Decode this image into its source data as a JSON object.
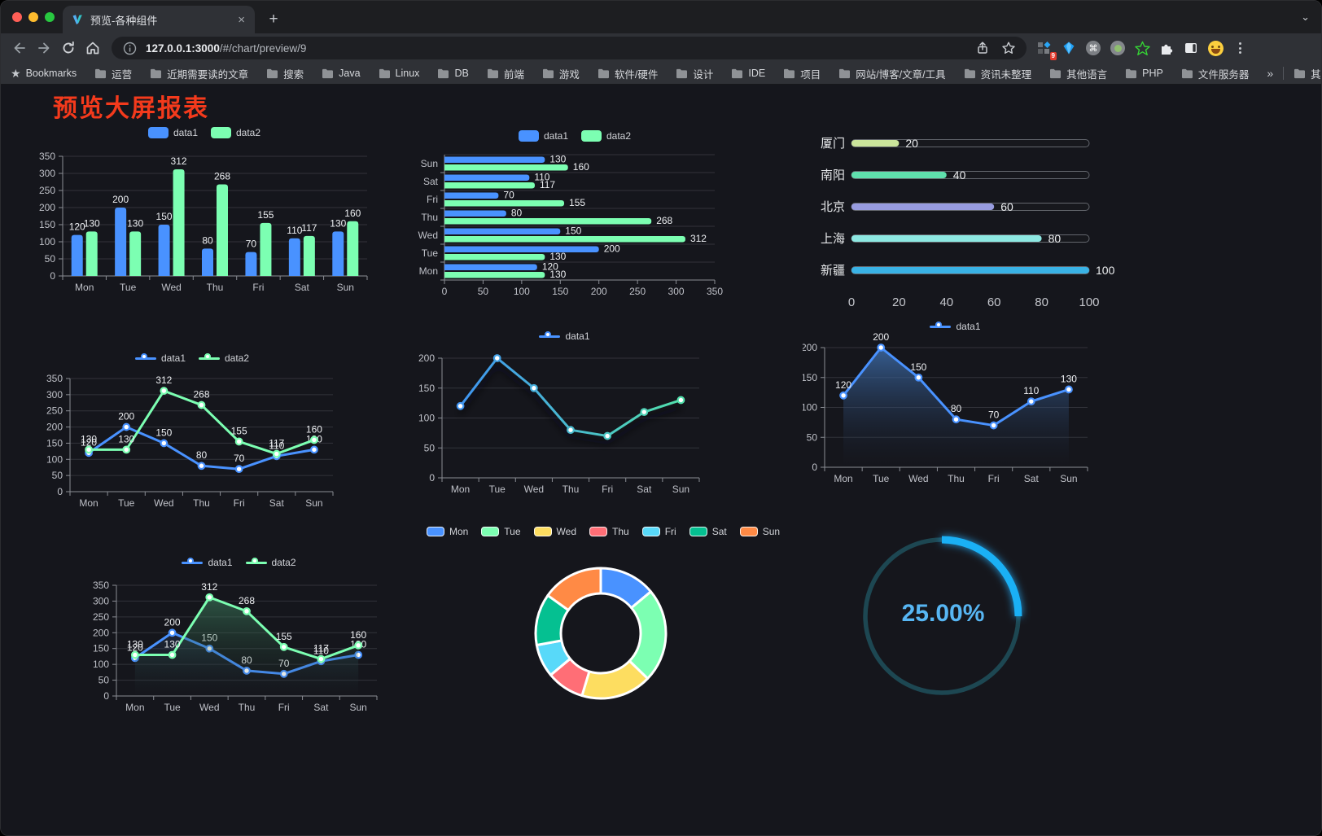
{
  "browser": {
    "window_controls": {
      "close": "#ff5f57",
      "minimize": "#febc2e",
      "zoom": "#28c840"
    },
    "tab_title": "预览-各种组件",
    "close_tab_label": "×",
    "new_tab_label": "+",
    "tab_chevron": "⌄",
    "url_host": "127.0.0.1:3000",
    "url_path": "/#/chart/preview/9",
    "extension_badge": "9",
    "menu_dots": "⋮",
    "bookmarks": {
      "label": "Bookmarks",
      "folders": [
        "运营",
        "近期需要读的文章",
        "搜索",
        "Java",
        "Linux",
        "DB",
        "前端",
        "游戏",
        "软件/硬件",
        "设计",
        "IDE",
        "项目",
        "网站/博客/文章/工具",
        "资讯未整理",
        "其他语言",
        "PHP",
        "文件服务器"
      ],
      "overflow": "»",
      "other_bookmarks": "其他书签"
    }
  },
  "page": {
    "title": "预览大屏报表",
    "title_color": "#f43a1c"
  },
  "chart_data": [
    {
      "id": "bar-vertical",
      "type": "bar",
      "orientation": "vertical",
      "categories": [
        "Mon",
        "Tue",
        "Wed",
        "Thu",
        "Fri",
        "Sat",
        "Sun"
      ],
      "series": [
        {
          "name": "data1",
          "color": "#4992ff",
          "values": [
            120,
            200,
            150,
            80,
            70,
            110,
            130
          ]
        },
        {
          "name": "data2",
          "color": "#7cffb2",
          "values": [
            130,
            130,
            312,
            268,
            155,
            117,
            160
          ]
        }
      ],
      "ylim": [
        0,
        350
      ],
      "yticks": [
        0,
        50,
        100,
        150,
        200,
        250,
        300,
        350
      ],
      "legend_position": "top",
      "value_labels": true,
      "grid": true
    },
    {
      "id": "bar-horizontal",
      "type": "bar",
      "orientation": "horizontal",
      "categories": [
        "Mon",
        "Tue",
        "Wed",
        "Thu",
        "Fri",
        "Sat",
        "Sun"
      ],
      "categories_bottom_to_top": true,
      "series": [
        {
          "name": "data1",
          "color": "#4992ff",
          "values": [
            120,
            200,
            150,
            80,
            70,
            110,
            130
          ]
        },
        {
          "name": "data2",
          "color": "#7cffb2",
          "values": [
            130,
            130,
            312,
            268,
            155,
            117,
            160
          ]
        }
      ],
      "xlim": [
        0,
        350
      ],
      "xticks": [
        0,
        50,
        100,
        150,
        200,
        250,
        300,
        350
      ],
      "legend_position": "top",
      "value_labels": true,
      "grid": true
    },
    {
      "id": "progress",
      "type": "bar",
      "orientation": "horizontal-progress",
      "rows": [
        {
          "label": "厦门",
          "value": 20,
          "color": "#cbe59b"
        },
        {
          "label": "南阳",
          "value": 40,
          "color": "#5fe0ad"
        },
        {
          "label": "北京",
          "value": 60,
          "color": "#989ce0"
        },
        {
          "label": "上海",
          "value": 80,
          "color": "#8de8e2"
        },
        {
          "label": "新疆",
          "value": 100,
          "color": "#39b2e5"
        }
      ],
      "xlim": [
        0,
        100
      ],
      "xticks": [
        0,
        20,
        40,
        60,
        80,
        100
      ],
      "value_labels": true
    },
    {
      "id": "line-two",
      "type": "line",
      "categories": [
        "Mon",
        "Tue",
        "Wed",
        "Thu",
        "Fri",
        "Sat",
        "Sun"
      ],
      "series": [
        {
          "name": "data1",
          "color": "#4992ff",
          "values": [
            120,
            200,
            150,
            80,
            70,
            110,
            130
          ]
        },
        {
          "name": "data2",
          "color": "#7cffb2",
          "values": [
            130,
            130,
            312,
            268,
            155,
            117,
            160
          ]
        }
      ],
      "ylim": [
        0,
        350
      ],
      "yticks": [
        0,
        50,
        100,
        150,
        200,
        250,
        300,
        350
      ],
      "legend_position": "top",
      "value_labels": true,
      "grid": true
    },
    {
      "id": "line-gradient",
      "type": "line",
      "categories": [
        "Mon",
        "Tue",
        "Wed",
        "Thu",
        "Fri",
        "Sat",
        "Sun"
      ],
      "series": [
        {
          "name": "data1",
          "gradient": [
            "#3e8ef7",
            "#53e6a6"
          ],
          "color": "#4992ff",
          "values": [
            120,
            200,
            150,
            80,
            70,
            110,
            130
          ]
        }
      ],
      "ylim": [
        0,
        200
      ],
      "yticks": [
        0,
        50,
        100,
        150,
        200
      ],
      "legend_position": "top",
      "value_labels": false,
      "line_shadow": true,
      "grid": true
    },
    {
      "id": "line-area",
      "type": "area",
      "categories": [
        "Mon",
        "Tue",
        "Wed",
        "Thu",
        "Fri",
        "Sat",
        "Sun"
      ],
      "series": [
        {
          "name": "data1",
          "color": "#4992ff",
          "values": [
            120,
            200,
            150,
            80,
            70,
            110,
            130
          ],
          "area_gradient": [
            "rgba(64,115,180,0.78)",
            "rgba(30,40,60,0)"
          ]
        }
      ],
      "ylim": [
        0,
        200
      ],
      "yticks": [
        0,
        50,
        100,
        150,
        200
      ],
      "legend_position": "top",
      "value_labels": true,
      "grid": true
    },
    {
      "id": "line-area-two",
      "type": "area",
      "categories": [
        "Mon",
        "Tue",
        "Wed",
        "Thu",
        "Fri",
        "Sat",
        "Sun"
      ],
      "series": [
        {
          "name": "data1",
          "color": "#4992ff",
          "values": [
            120,
            200,
            150,
            80,
            70,
            110,
            130
          ],
          "area_gradient": [
            "rgba(60,100,160,0.55)",
            "rgba(30,40,60,0)"
          ]
        },
        {
          "name": "data2",
          "color": "#7cffb2",
          "values": [
            130,
            130,
            312,
            268,
            155,
            117,
            160
          ],
          "area_gradient": [
            "rgba(70,150,110,0.6)",
            "rgba(30,50,40,0)"
          ]
        }
      ],
      "ylim": [
        0,
        350
      ],
      "yticks": [
        0,
        50,
        100,
        150,
        200,
        250,
        300,
        350
      ],
      "legend_position": "top",
      "value_labels": true,
      "grid": true
    },
    {
      "id": "donut",
      "type": "pie",
      "labels": [
        "Mon",
        "Tue",
        "Wed",
        "Thu",
        "Fri",
        "Sat",
        "Sun"
      ],
      "values": [
        120,
        200,
        150,
        80,
        70,
        110,
        130
      ],
      "colors": [
        "#4992ff",
        "#7cffb2",
        "#fddd60",
        "#ff6e76",
        "#58d9f9",
        "#05c091",
        "#ff8a45"
      ],
      "inner_radius_ratio": 0.61,
      "legend_position": "top",
      "border_color": "#ffffff"
    },
    {
      "id": "gauge",
      "type": "gauge",
      "value": 25,
      "max": 100,
      "display": "25.00%",
      "progress_color": "#1ab0f5",
      "track_color": "#1d4752",
      "text_color": "#57b6f3"
    }
  ]
}
